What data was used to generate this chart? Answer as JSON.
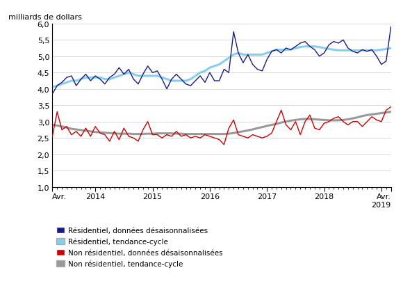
{
  "title_ylabel": "milliards de dollars",
  "ylim": [
    1.0,
    6.0
  ],
  "yticks": [
    1.0,
    1.5,
    2.0,
    2.5,
    3.0,
    3.5,
    4.0,
    4.5,
    5.0,
    5.5,
    6.0
  ],
  "color_res_sa": "#1a1a8c",
  "color_res_tc": "#87ceeb",
  "color_nonres_sa": "#cc0000",
  "color_nonres_tc": "#999999",
  "legend_labels": [
    "Résidentiel, données désaisonnalisées",
    "Résidentiel, tendance-cycle",
    "Non résidentiel, données désaisonnalisées",
    "Non résidentiel, tendance-cycle"
  ],
  "res_sa": [
    3.85,
    4.1,
    4.2,
    4.35,
    4.4,
    4.1,
    4.3,
    4.45,
    4.25,
    4.4,
    4.3,
    4.15,
    4.35,
    4.45,
    4.65,
    4.45,
    4.6,
    4.3,
    4.15,
    4.45,
    4.7,
    4.5,
    4.55,
    4.3,
    4.0,
    4.3,
    4.45,
    4.3,
    4.15,
    4.1,
    4.25,
    4.4,
    4.2,
    4.5,
    4.25,
    4.25,
    4.6,
    4.5,
    5.75,
    5.1,
    4.8,
    5.05,
    4.75,
    4.6,
    4.55,
    4.9,
    5.15,
    5.2,
    5.1,
    5.25,
    5.2,
    5.3,
    5.4,
    5.45,
    5.3,
    5.2,
    5.0,
    5.1,
    5.35,
    5.45,
    5.4,
    5.5,
    5.25,
    5.15,
    5.1,
    5.2,
    5.15,
    5.2,
    5.0,
    4.75,
    4.85,
    5.9
  ],
  "res_tc": [
    4.05,
    4.1,
    4.15,
    4.2,
    4.25,
    4.25,
    4.3,
    4.35,
    4.35,
    4.35,
    4.35,
    4.3,
    4.3,
    4.35,
    4.4,
    4.45,
    4.5,
    4.45,
    4.4,
    4.4,
    4.4,
    4.4,
    4.4,
    4.35,
    4.3,
    4.25,
    4.25,
    4.25,
    4.25,
    4.3,
    4.4,
    4.5,
    4.55,
    4.65,
    4.7,
    4.75,
    4.85,
    4.95,
    5.05,
    5.1,
    5.05,
    5.05,
    5.05,
    5.05,
    5.05,
    5.1,
    5.15,
    5.2,
    5.2,
    5.2,
    5.2,
    5.25,
    5.28,
    5.3,
    5.3,
    5.3,
    5.28,
    5.25,
    5.22,
    5.2,
    5.18,
    5.18,
    5.18,
    5.18,
    5.18,
    5.18,
    5.18,
    5.18,
    5.18,
    5.2,
    5.22,
    5.25
  ],
  "nonres_sa": [
    2.55,
    3.3,
    2.75,
    2.85,
    2.6,
    2.7,
    2.55,
    2.8,
    2.55,
    2.85,
    2.65,
    2.6,
    2.4,
    2.7,
    2.45,
    2.8,
    2.55,
    2.5,
    2.4,
    2.75,
    3.0,
    2.6,
    2.6,
    2.5,
    2.6,
    2.55,
    2.7,
    2.55,
    2.6,
    2.5,
    2.55,
    2.5,
    2.6,
    2.55,
    2.5,
    2.45,
    2.3,
    2.8,
    3.05,
    2.6,
    2.55,
    2.5,
    2.6,
    2.55,
    2.5,
    2.55,
    2.65,
    3.0,
    3.35,
    2.9,
    2.75,
    3.0,
    2.6,
    3.0,
    3.2,
    2.8,
    2.75,
    2.95,
    3.0,
    3.1,
    3.15,
    3.0,
    2.9,
    3.0,
    3.0,
    2.85,
    3.0,
    3.15,
    3.05,
    3.0,
    3.35,
    3.45
  ],
  "nonres_tc": [
    2.9,
    2.88,
    2.85,
    2.82,
    2.78,
    2.76,
    2.74,
    2.72,
    2.7,
    2.68,
    2.67,
    2.66,
    2.65,
    2.64,
    2.63,
    2.63,
    2.63,
    2.62,
    2.62,
    2.62,
    2.63,
    2.63,
    2.64,
    2.64,
    2.64,
    2.64,
    2.63,
    2.63,
    2.62,
    2.62,
    2.62,
    2.62,
    2.62,
    2.62,
    2.62,
    2.62,
    2.62,
    2.63,
    2.65,
    2.68,
    2.7,
    2.73,
    2.76,
    2.8,
    2.83,
    2.87,
    2.9,
    2.93,
    2.97,
    3.0,
    3.03,
    3.05,
    3.07,
    3.08,
    3.08,
    3.07,
    3.06,
    3.05,
    3.04,
    3.04,
    3.04,
    3.05,
    3.07,
    3.1,
    3.13,
    3.17,
    3.2,
    3.22,
    3.24,
    3.26,
    3.28,
    3.3
  ],
  "x_major_ticks": [
    0,
    9,
    21,
    33,
    45,
    57,
    69,
    71
  ],
  "x_minor_count": 72,
  "figsize": [
    5.8,
    4.35
  ],
  "dpi": 100
}
